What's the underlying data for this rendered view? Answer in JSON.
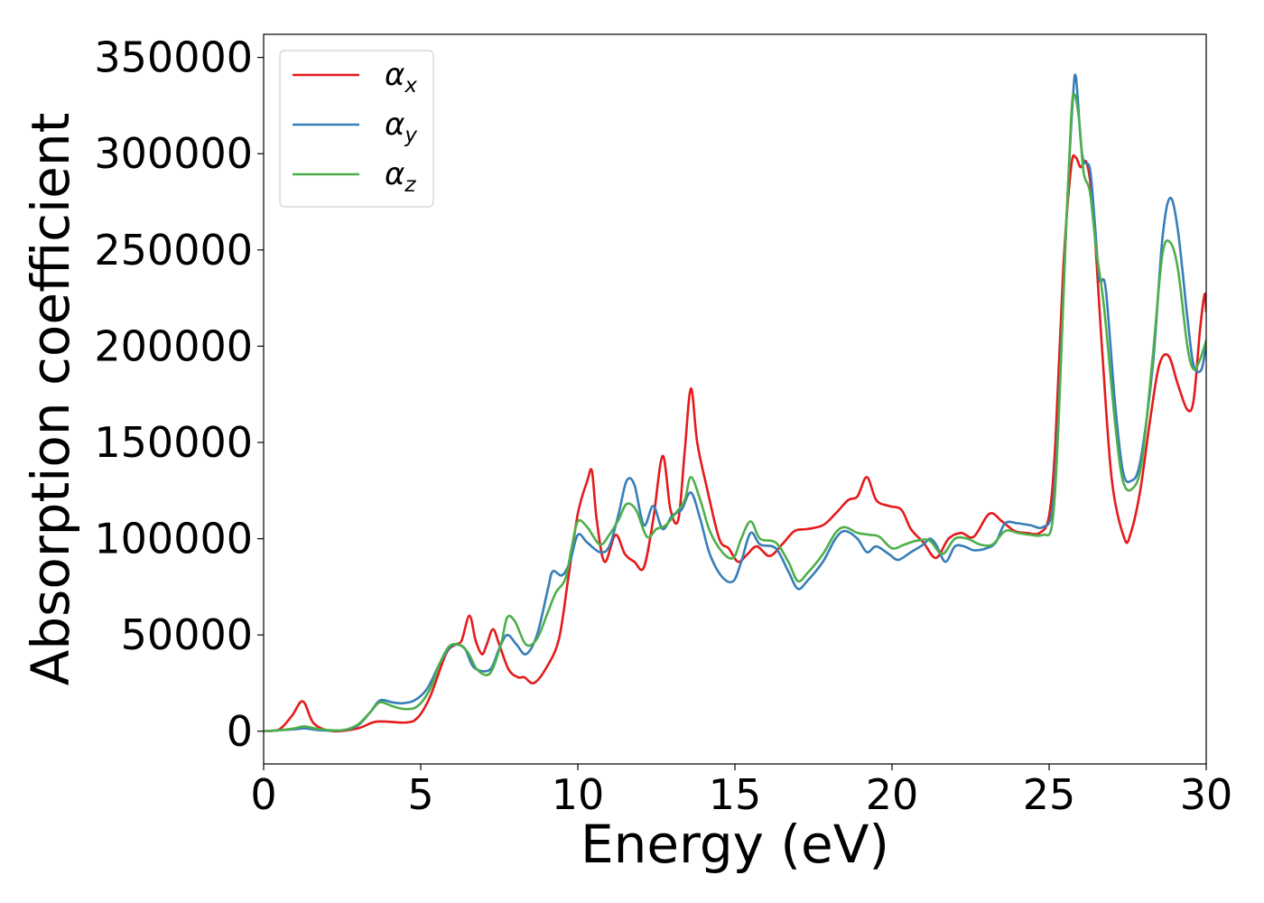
{
  "chart_data": {
    "type": "line",
    "title": "",
    "xlabel": "Energy (eV)",
    "ylabel": "Absorption coefficient",
    "xlim": [
      0,
      30
    ],
    "ylim": [
      -17000,
      362000
    ],
    "xticks": [
      0,
      5,
      10,
      15,
      20,
      25,
      30
    ],
    "xtick_labels": [
      "0",
      "5",
      "10",
      "15",
      "20",
      "25",
      "30"
    ],
    "yticks": [
      0,
      50000,
      100000,
      150000,
      200000,
      250000,
      300000,
      350000
    ],
    "ytick_labels": [
      "0",
      "50000",
      "100000",
      "150000",
      "200000",
      "250000",
      "300000",
      "350000"
    ],
    "grid": false,
    "legend_position": "top-left",
    "series": [
      {
        "name": "α_x",
        "label_base": "α",
        "label_sub": "x",
        "color": "#e41a1c",
        "points": [
          [
            0,
            0
          ],
          [
            0.5,
            1000
          ],
          [
            0.9,
            8000
          ],
          [
            1.25,
            15500
          ],
          [
            1.6,
            4000
          ],
          [
            2.2,
            0
          ],
          [
            3,
            1500
          ],
          [
            3.6,
            5000
          ],
          [
            4.5,
            4500
          ],
          [
            4.9,
            7000
          ],
          [
            5.3,
            18000
          ],
          [
            5.8,
            40000
          ],
          [
            6.1,
            45000
          ],
          [
            6.3,
            47000
          ],
          [
            6.55,
            60000
          ],
          [
            6.75,
            47000
          ],
          [
            6.95,
            40000
          ],
          [
            7.1,
            45000
          ],
          [
            7.3,
            53000
          ],
          [
            7.5,
            45000
          ],
          [
            7.8,
            32000
          ],
          [
            8.1,
            28000
          ],
          [
            8.3,
            28000
          ],
          [
            8.6,
            25000
          ],
          [
            9,
            33000
          ],
          [
            9.4,
            48000
          ],
          [
            9.7,
            80000
          ],
          [
            10,
            113000
          ],
          [
            10.3,
            130000
          ],
          [
            10.45,
            135000
          ],
          [
            10.6,
            110000
          ],
          [
            10.85,
            88000
          ],
          [
            11.2,
            102000
          ],
          [
            11.5,
            92000
          ],
          [
            11.8,
            88000
          ],
          [
            12.1,
            85000
          ],
          [
            12.4,
            110000
          ],
          [
            12.7,
            143000
          ],
          [
            12.95,
            115000
          ],
          [
            13.2,
            110000
          ],
          [
            13.4,
            145000
          ],
          [
            13.6,
            178000
          ],
          [
            13.8,
            150000
          ],
          [
            14.1,
            127000
          ],
          [
            14.5,
            100000
          ],
          [
            14.8,
            95000
          ],
          [
            15.1,
            88000
          ],
          [
            15.4,
            92000
          ],
          [
            15.7,
            96000
          ],
          [
            16.1,
            91000
          ],
          [
            16.5,
            97000
          ],
          [
            16.9,
            104000
          ],
          [
            17.3,
            105000
          ],
          [
            17.8,
            107000
          ],
          [
            18.2,
            113000
          ],
          [
            18.6,
            120000
          ],
          [
            18.9,
            122000
          ],
          [
            19.2,
            132000
          ],
          [
            19.5,
            120000
          ],
          [
            19.9,
            117000
          ],
          [
            20.3,
            115000
          ],
          [
            20.6,
            105000
          ],
          [
            21,
            98000
          ],
          [
            21.4,
            90000
          ],
          [
            21.8,
            100000
          ],
          [
            22.2,
            103000
          ],
          [
            22.6,
            101000
          ],
          [
            23.1,
            113000
          ],
          [
            23.5,
            109000
          ],
          [
            23.9,
            104000
          ],
          [
            24.3,
            103000
          ],
          [
            24.7,
            103000
          ],
          [
            25,
            112000
          ],
          [
            25.2,
            150000
          ],
          [
            25.45,
            240000
          ],
          [
            25.7,
            293000
          ],
          [
            25.85,
            298000
          ],
          [
            26,
            293000
          ],
          [
            26.2,
            295000
          ],
          [
            26.4,
            270000
          ],
          [
            26.7,
            195000
          ],
          [
            27,
            130000
          ],
          [
            27.4,
            100000
          ],
          [
            27.6,
            103000
          ],
          [
            27.9,
            125000
          ],
          [
            28.2,
            160000
          ],
          [
            28.5,
            190000
          ],
          [
            28.8,
            195000
          ],
          [
            29.1,
            180000
          ],
          [
            29.4,
            167000
          ],
          [
            29.6,
            172000
          ],
          [
            29.8,
            208000
          ],
          [
            29.95,
            227000
          ],
          [
            30,
            218000
          ]
        ]
      },
      {
        "name": "α_y",
        "label_base": "α",
        "label_sub": "y",
        "color": "#377eb8",
        "points": [
          [
            0,
            0
          ],
          [
            0.5,
            500
          ],
          [
            1,
            1000
          ],
          [
            1.3,
            1500
          ],
          [
            1.8,
            500
          ],
          [
            2.5,
            500
          ],
          [
            3,
            3000
          ],
          [
            3.4,
            10000
          ],
          [
            3.7,
            16000
          ],
          [
            4.1,
            15000
          ],
          [
            4.4,
            14500
          ],
          [
            4.8,
            16000
          ],
          [
            5.2,
            22000
          ],
          [
            5.6,
            35000
          ],
          [
            5.9,
            43000
          ],
          [
            6.1,
            45000
          ],
          [
            6.4,
            43000
          ],
          [
            6.7,
            33000
          ],
          [
            7.2,
            32000
          ],
          [
            7.5,
            43000
          ],
          [
            7.75,
            50000
          ],
          [
            8.05,
            45000
          ],
          [
            8.35,
            40000
          ],
          [
            8.7,
            50000
          ],
          [
            9.05,
            74000
          ],
          [
            9.2,
            83000
          ],
          [
            9.5,
            81000
          ],
          [
            9.75,
            88000
          ],
          [
            10,
            102000
          ],
          [
            10.3,
            98000
          ],
          [
            10.7,
            93000
          ],
          [
            11,
            96000
          ],
          [
            11.3,
            113000
          ],
          [
            11.55,
            130000
          ],
          [
            11.8,
            128000
          ],
          [
            12.1,
            107000
          ],
          [
            12.4,
            117000
          ],
          [
            12.7,
            105000
          ],
          [
            13,
            112000
          ],
          [
            13.3,
            115000
          ],
          [
            13.6,
            124000
          ],
          [
            13.9,
            110000
          ],
          [
            14.2,
            92000
          ],
          [
            14.6,
            80000
          ],
          [
            14.95,
            78000
          ],
          [
            15.2,
            88000
          ],
          [
            15.5,
            103000
          ],
          [
            15.8,
            97000
          ],
          [
            16.3,
            95000
          ],
          [
            16.7,
            83000
          ],
          [
            17,
            74000
          ],
          [
            17.3,
            78000
          ],
          [
            17.8,
            88000
          ],
          [
            18.2,
            100000
          ],
          [
            18.5,
            104000
          ],
          [
            18.9,
            100000
          ],
          [
            19.2,
            93000
          ],
          [
            19.5,
            96000
          ],
          [
            19.9,
            92000
          ],
          [
            20.2,
            89000
          ],
          [
            20.6,
            93000
          ],
          [
            21,
            97000
          ],
          [
            21.2,
            100000
          ],
          [
            21.4,
            97000
          ],
          [
            21.7,
            88000
          ],
          [
            22,
            96000
          ],
          [
            22.3,
            96000
          ],
          [
            22.6,
            94000
          ],
          [
            23,
            95000
          ],
          [
            23.3,
            98000
          ],
          [
            23.6,
            108000
          ],
          [
            24,
            108000
          ],
          [
            24.4,
            107000
          ],
          [
            24.8,
            106000
          ],
          [
            25.1,
            115000
          ],
          [
            25.3,
            165000
          ],
          [
            25.55,
            265000
          ],
          [
            25.75,
            327000
          ],
          [
            25.85,
            340000
          ],
          [
            26,
            308000
          ],
          [
            26.1,
            296000
          ],
          [
            26.3,
            292000
          ],
          [
            26.45,
            265000
          ],
          [
            26.6,
            235000
          ],
          [
            26.8,
            230000
          ],
          [
            27.1,
            170000
          ],
          [
            27.35,
            135000
          ],
          [
            27.6,
            130000
          ],
          [
            27.9,
            140000
          ],
          [
            28.3,
            190000
          ],
          [
            28.6,
            255000
          ],
          [
            28.85,
            277000
          ],
          [
            29.1,
            260000
          ],
          [
            29.4,
            215000
          ],
          [
            29.6,
            190000
          ],
          [
            29.85,
            188000
          ],
          [
            30,
            202000
          ]
        ]
      },
      {
        "name": "α_z",
        "label_base": "α",
        "label_sub": "z",
        "color": "#4daf4a",
        "points": [
          [
            0,
            0
          ],
          [
            0.5,
            500
          ],
          [
            1,
            1500
          ],
          [
            1.3,
            2500
          ],
          [
            1.8,
            1000
          ],
          [
            2.5,
            500
          ],
          [
            3,
            3500
          ],
          [
            3.4,
            10000
          ],
          [
            3.7,
            15000
          ],
          [
            4.1,
            13000
          ],
          [
            4.5,
            11500
          ],
          [
            4.9,
            13000
          ],
          [
            5.3,
            22000
          ],
          [
            5.6,
            35000
          ],
          [
            5.9,
            44000
          ],
          [
            6.2,
            45000
          ],
          [
            6.5,
            41000
          ],
          [
            6.8,
            32000
          ],
          [
            7.2,
            30000
          ],
          [
            7.55,
            45000
          ],
          [
            7.75,
            59000
          ],
          [
            8,
            57000
          ],
          [
            8.35,
            45000
          ],
          [
            8.7,
            48000
          ],
          [
            9.05,
            62000
          ],
          [
            9.3,
            72000
          ],
          [
            9.6,
            79000
          ],
          [
            9.8,
            95000
          ],
          [
            10,
            109000
          ],
          [
            10.3,
            106000
          ],
          [
            10.7,
            97000
          ],
          [
            11,
            102000
          ],
          [
            11.3,
            110000
          ],
          [
            11.55,
            118000
          ],
          [
            11.85,
            115000
          ],
          [
            12.2,
            101000
          ],
          [
            12.5,
            105000
          ],
          [
            12.8,
            107000
          ],
          [
            13.1,
            113000
          ],
          [
            13.4,
            120000
          ],
          [
            13.6,
            132000
          ],
          [
            13.9,
            120000
          ],
          [
            14.2,
            104000
          ],
          [
            14.6,
            93000
          ],
          [
            14.95,
            90000
          ],
          [
            15.2,
            100000
          ],
          [
            15.5,
            109000
          ],
          [
            15.8,
            100000
          ],
          [
            16.3,
            98000
          ],
          [
            16.7,
            88000
          ],
          [
            17,
            78000
          ],
          [
            17.3,
            82000
          ],
          [
            17.8,
            92000
          ],
          [
            18.2,
            103000
          ],
          [
            18.5,
            106000
          ],
          [
            18.9,
            103000
          ],
          [
            19.3,
            102000
          ],
          [
            19.6,
            101000
          ],
          [
            20,
            95000
          ],
          [
            20.4,
            97000
          ],
          [
            20.8,
            99000
          ],
          [
            21.2,
            99000
          ],
          [
            21.6,
            92000
          ],
          [
            22,
            100000
          ],
          [
            22.4,
            100000
          ],
          [
            22.8,
            97000
          ],
          [
            23.2,
            97000
          ],
          [
            23.6,
            104000
          ],
          [
            24,
            103000
          ],
          [
            24.4,
            102000
          ],
          [
            24.8,
            102000
          ],
          [
            25.1,
            108000
          ],
          [
            25.3,
            160000
          ],
          [
            25.5,
            245000
          ],
          [
            25.7,
            318000
          ],
          [
            25.8,
            331000
          ],
          [
            25.95,
            318000
          ],
          [
            26.1,
            290000
          ],
          [
            26.3,
            280000
          ],
          [
            26.5,
            250000
          ],
          [
            26.75,
            220000
          ],
          [
            27.1,
            160000
          ],
          [
            27.35,
            130000
          ],
          [
            27.65,
            126000
          ],
          [
            27.95,
            140000
          ],
          [
            28.3,
            195000
          ],
          [
            28.6,
            247000
          ],
          [
            28.85,
            254000
          ],
          [
            29.1,
            240000
          ],
          [
            29.4,
            200000
          ],
          [
            29.6,
            188000
          ],
          [
            29.8,
            193000
          ],
          [
            30,
            203000
          ]
        ]
      }
    ]
  }
}
